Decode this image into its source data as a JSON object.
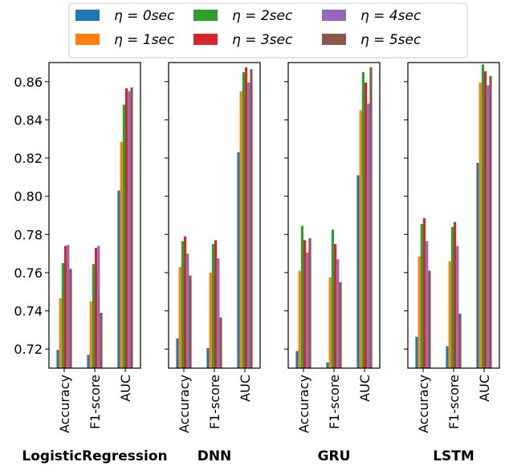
{
  "chart_data": {
    "type": "bar",
    "ylim": [
      0.71,
      0.87
    ],
    "yticks": [
      "0.72",
      "0.74",
      "0.76",
      "0.78",
      "0.80",
      "0.82",
      "0.84",
      "0.86"
    ],
    "categories": [
      "Accuracy",
      "F1-score",
      "AUC"
    ],
    "legend": {
      "placement": "top-center",
      "entries": [
        {
          "label": "η = 0sec",
          "color": "#1f77b4"
        },
        {
          "label": "η = 1sec",
          "color": "#ff7f0e"
        },
        {
          "label": "η = 2sec",
          "color": "#2ca02c"
        },
        {
          "label": "η = 3sec",
          "color": "#d62728"
        },
        {
          "label": "η = 4sec",
          "color": "#9467bd"
        },
        {
          "label": "η = 5sec",
          "color": "#8c564b"
        }
      ]
    },
    "panels": [
      {
        "title": "LogisticRegression",
        "values": [
          [
            0.7195,
            0.7465,
            0.765,
            0.774,
            0.7745,
            0.762
          ],
          [
            0.717,
            0.745,
            0.7645,
            0.773,
            0.774,
            0.739
          ],
          [
            0.803,
            0.8285,
            0.848,
            0.8565,
            0.855,
            0.857
          ]
        ]
      },
      {
        "title": "DNN",
        "values": [
          [
            0.7255,
            0.763,
            0.7765,
            0.779,
            0.77,
            0.7585
          ],
          [
            0.7205,
            0.76,
            0.775,
            0.777,
            0.7675,
            0.7365
          ],
          [
            0.823,
            0.855,
            0.865,
            0.8675,
            0.8595,
            0.8665
          ]
        ]
      },
      {
        "title": "GRU",
        "values": [
          [
            0.719,
            0.761,
            0.7845,
            0.777,
            0.7705,
            0.778
          ],
          [
            0.713,
            0.7575,
            0.7825,
            0.775,
            0.767,
            0.755
          ],
          [
            0.811,
            0.845,
            0.865,
            0.8595,
            0.8485,
            0.8675
          ]
        ]
      },
      {
        "title": "LSTM",
        "values": [
          [
            0.7265,
            0.7685,
            0.7855,
            0.7885,
            0.7765,
            0.761
          ],
          [
            0.7215,
            0.766,
            0.784,
            0.7865,
            0.774,
            0.7385
          ],
          [
            0.8175,
            0.8595,
            0.869,
            0.8655,
            0.858,
            0.863
          ]
        ]
      }
    ]
  }
}
